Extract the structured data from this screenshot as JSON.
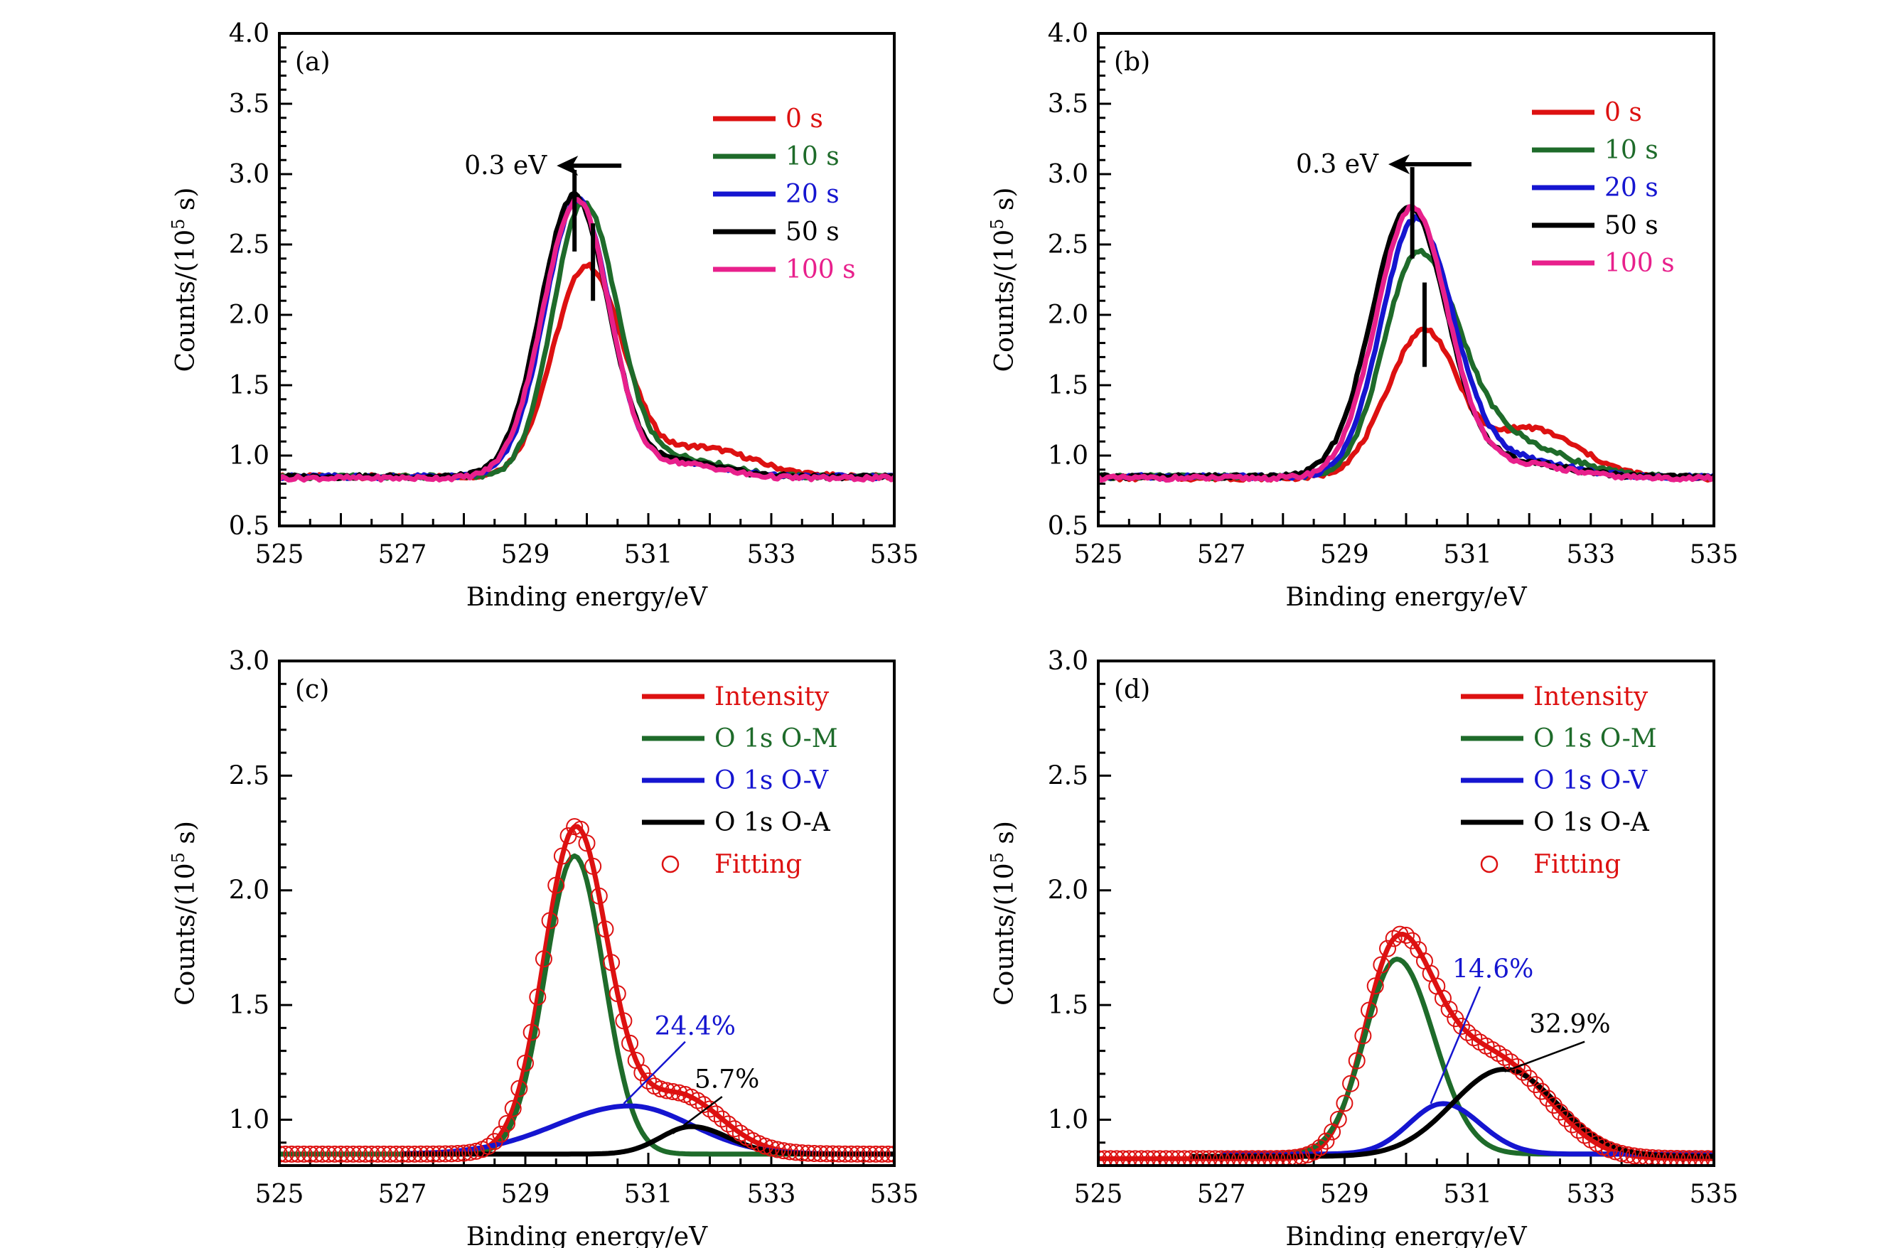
{
  "chart_data": [
    {
      "id": "a",
      "type": "line",
      "panel_label": "(a)",
      "xlabel": "Binding energy/eV",
      "ylabel": "Counts/(10^5 s)",
      "ylabel_parts": {
        "pre": "Counts/(10",
        "sup": "5",
        "post": " s)"
      },
      "xlim": [
        525,
        535
      ],
      "ylim": [
        0.5,
        4.0
      ],
      "xticks": [
        525,
        527,
        529,
        531,
        533,
        535
      ],
      "xtick_labels": [
        "525",
        "527",
        "529",
        "531",
        "533",
        "535"
      ],
      "yticks": [
        0.5,
        1.0,
        1.5,
        2.0,
        2.5,
        3.0,
        3.5,
        4.0
      ],
      "ytick_labels": [
        "0.5",
        "1.0",
        "1.5",
        "2.0",
        "2.5",
        "3.0",
        "3.5",
        "4.0"
      ],
      "legend_position": "top-right",
      "annotation": {
        "text": "0.3 eV",
        "shift_from": 530.1,
        "shift_to": 529.8,
        "arrow_y": 3.06
      },
      "peak_markers": [
        {
          "x": 529.8,
          "y_from": 2.45,
          "y_to": 3.03
        },
        {
          "x": 530.1,
          "y_from": 2.1,
          "y_to": 2.65
        }
      ],
      "series": [
        {
          "name": "0 s",
          "color": "#dd1111",
          "baseline": 0.85,
          "peaks": [
            {
              "center": 530.0,
              "height": 1.5,
              "sigmaL": 0.55,
              "sigmaR": 0.6
            },
            {
              "center": 531.9,
              "height": 0.2,
              "sigmaL": 0.6,
              "sigmaR": 0.8
            }
          ]
        },
        {
          "name": "10 s",
          "color": "#1e6b2a",
          "baseline": 0.85,
          "peaks": [
            {
              "center": 529.95,
              "height": 1.95,
              "sigmaL": 0.5,
              "sigmaR": 0.55
            },
            {
              "center": 531.6,
              "height": 0.12,
              "sigmaL": 0.5,
              "sigmaR": 0.7
            }
          ]
        },
        {
          "name": "20 s",
          "color": "#1515d0",
          "baseline": 0.85,
          "peaks": [
            {
              "center": 529.85,
              "height": 1.97,
              "sigmaL": 0.53,
              "sigmaR": 0.52
            },
            {
              "center": 531.5,
              "height": 0.1,
              "sigmaL": 0.5,
              "sigmaR": 0.7
            }
          ]
        },
        {
          "name": "50 s",
          "color": "#000000",
          "baseline": 0.85,
          "peaks": [
            {
              "center": 529.8,
              "height": 2.0,
              "sigmaL": 0.55,
              "sigmaR": 0.55
            },
            {
              "center": 531.5,
              "height": 0.1,
              "sigmaL": 0.5,
              "sigmaR": 0.7
            }
          ]
        },
        {
          "name": "100 s",
          "color": "#e8208c",
          "baseline": 0.84,
          "peaks": [
            {
              "center": 529.85,
              "height": 1.98,
              "sigmaL": 0.56,
              "sigmaR": 0.52
            },
            {
              "center": 531.5,
              "height": 0.1,
              "sigmaL": 0.5,
              "sigmaR": 0.7
            }
          ]
        }
      ]
    },
    {
      "id": "b",
      "type": "line",
      "panel_label": "(b)",
      "xlabel": "Binding energy/eV",
      "ylabel": "Counts/(10^5 s)",
      "ylabel_parts": {
        "pre": "Counts/(10",
        "sup": "5",
        "post": " s)"
      },
      "xlim": [
        525,
        535
      ],
      "ylim": [
        0.5,
        4.0
      ],
      "xticks": [
        525,
        527,
        529,
        531,
        533,
        535
      ],
      "xtick_labels": [
        "525",
        "527",
        "529",
        "531",
        "533",
        "535"
      ],
      "yticks": [
        0.5,
        1.0,
        1.5,
        2.0,
        2.5,
        3.0,
        3.5,
        4.0
      ],
      "ytick_labels": [
        "0.5",
        "1.0",
        "1.5",
        "2.0",
        "2.5",
        "3.0",
        "3.5",
        "4.0"
      ],
      "legend_position": "top-right",
      "annotation": {
        "text": "0.3 eV",
        "shift_from": 530.6,
        "shift_to": 530.0,
        "arrow_y": 3.07
      },
      "peak_markers": [
        {
          "x": 530.1,
          "y_from": 2.4,
          "y_to": 3.05
        },
        {
          "x": 530.3,
          "y_from": 1.63,
          "y_to": 2.23
        }
      ],
      "series": [
        {
          "name": "0 s",
          "color": "#dd1111",
          "baseline": 0.84,
          "peaks": [
            {
              "center": 530.3,
              "height": 1.05,
              "sigmaL": 0.6,
              "sigmaR": 0.55
            },
            {
              "center": 532.0,
              "height": 0.35,
              "sigmaL": 0.6,
              "sigmaR": 0.8
            }
          ]
        },
        {
          "name": "10 s",
          "color": "#1e6b2a",
          "baseline": 0.85,
          "peaks": [
            {
              "center": 530.2,
              "height": 1.6,
              "sigmaL": 0.55,
              "sigmaR": 0.7
            },
            {
              "center": 531.9,
              "height": 0.2,
              "sigmaL": 0.6,
              "sigmaR": 0.8
            }
          ]
        },
        {
          "name": "20 s",
          "color": "#1515d0",
          "baseline": 0.85,
          "peaks": [
            {
              "center": 530.15,
              "height": 1.83,
              "sigmaL": 0.55,
              "sigmaR": 0.62
            },
            {
              "center": 531.8,
              "height": 0.12,
              "sigmaL": 0.6,
              "sigmaR": 0.8
            }
          ]
        },
        {
          "name": "50 s",
          "color": "#000000",
          "baseline": 0.85,
          "peaks": [
            {
              "center": 530.05,
              "height": 1.93,
              "sigmaL": 0.6,
              "sigmaR": 0.6
            },
            {
              "center": 531.8,
              "height": 0.1,
              "sigmaL": 0.6,
              "sigmaR": 0.8
            }
          ]
        },
        {
          "name": "100 s",
          "color": "#e8208c",
          "baseline": 0.84,
          "peaks": [
            {
              "center": 530.1,
              "height": 1.92,
              "sigmaL": 0.58,
              "sigmaR": 0.58
            },
            {
              "center": 531.8,
              "height": 0.1,
              "sigmaL": 0.6,
              "sigmaR": 0.8
            }
          ]
        }
      ]
    },
    {
      "id": "c",
      "type": "line",
      "panel_label": "(c)",
      "xlabel": "Binding energy/eV",
      "ylabel": "Counts/(10^5 s)",
      "ylabel_parts": {
        "pre": "Counts/(10",
        "sup": "5",
        "post": " s)"
      },
      "xlim": [
        525,
        535
      ],
      "ylim": [
        0.8,
        3.0
      ],
      "xticks": [
        525,
        527,
        529,
        531,
        533,
        535
      ],
      "xtick_labels": [
        "525",
        "527",
        "529",
        "531",
        "533",
        "535"
      ],
      "yticks": [
        1.0,
        1.5,
        2.0,
        2.5,
        3.0
      ],
      "ytick_labels": [
        "1.0",
        "1.5",
        "2.0",
        "2.5",
        "3.0"
      ],
      "legend_position": "top-right",
      "percent_labels": [
        {
          "text": "24.4%",
          "color": "#1515d0",
          "x": 531.1,
          "y": 1.37,
          "line_from": [
            530.6,
            1.07
          ],
          "line_to": [
            531.6,
            1.34
          ]
        },
        {
          "text": "5.7%",
          "color": "#000000",
          "x": 531.75,
          "y": 1.14,
          "line_from": [
            531.4,
            0.94
          ],
          "line_to": [
            532.2,
            1.1
          ]
        }
      ],
      "series": [
        {
          "name": "Intensity",
          "color": "#dd1111",
          "kind": "line",
          "baseline": 0.85,
          "peaks": [
            {
              "center": 529.8,
              "height": 1.3,
              "sigmaL": 0.5,
              "sigmaR": 0.5
            },
            {
              "center": 530.7,
              "height": 0.21,
              "sigmaL": 0.9,
              "sigmaR": 1.0
            },
            {
              "center": 531.7,
              "height": 0.12,
              "sigmaL": 0.5,
              "sigmaR": 0.6
            }
          ]
        },
        {
          "name": "O 1s O-M",
          "color": "#1e6b2a",
          "kind": "line",
          "baseline": 0.85,
          "peaks": [
            {
              "center": 529.8,
              "height": 1.3,
              "sigmaL": 0.48,
              "sigmaR": 0.48
            }
          ]
        },
        {
          "name": "O 1s O-V",
          "color": "#1515d0",
          "kind": "line",
          "baseline": 0.85,
          "x_start": 527.0,
          "peaks": [
            {
              "center": 530.7,
              "height": 0.21,
              "sigmaL": 1.2,
              "sigmaR": 1.0
            }
          ]
        },
        {
          "name": "O 1s O-A",
          "color": "#000000",
          "kind": "line",
          "baseline": 0.85,
          "x_start": 527.0,
          "peaks": [
            {
              "center": 531.7,
              "height": 0.12,
              "sigmaL": 0.5,
              "sigmaR": 0.6
            }
          ]
        },
        {
          "name": "Fitting",
          "color": "#dd1111",
          "kind": "circles",
          "baseline": 0.85,
          "peaks": [
            {
              "center": 529.8,
              "height": 1.3,
              "sigmaL": 0.5,
              "sigmaR": 0.5
            },
            {
              "center": 530.7,
              "height": 0.21,
              "sigmaL": 0.9,
              "sigmaR": 1.0
            },
            {
              "center": 531.7,
              "height": 0.12,
              "sigmaL": 0.5,
              "sigmaR": 0.6
            }
          ]
        }
      ]
    },
    {
      "id": "d",
      "type": "line",
      "panel_label": "(d)",
      "xlabel": "Binding energy/eV",
      "ylabel": "Counts/(10^5 s)",
      "ylabel_parts": {
        "pre": "Counts/(10",
        "sup": "5",
        "post": " s)"
      },
      "xlim": [
        525,
        535
      ],
      "ylim": [
        0.8,
        3.0
      ],
      "xticks": [
        525,
        527,
        529,
        531,
        533,
        535
      ],
      "xtick_labels": [
        "525",
        "527",
        "529",
        "531",
        "533",
        "535"
      ],
      "yticks": [
        1.0,
        1.5,
        2.0,
        2.5,
        3.0
      ],
      "ytick_labels": [
        "1.0",
        "1.5",
        "2.0",
        "2.5",
        "3.0"
      ],
      "legend_position": "top-right",
      "percent_labels": [
        {
          "text": "14.6%",
          "color": "#1515d0",
          "x": 530.75,
          "y": 1.62,
          "line_from": [
            530.4,
            1.07
          ],
          "line_to": [
            531.2,
            1.58
          ]
        },
        {
          "text": "32.9%",
          "color": "#000000",
          "x": 532.0,
          "y": 1.38,
          "line_from": [
            531.6,
            1.21
          ],
          "line_to": [
            532.9,
            1.34
          ]
        }
      ],
      "series": [
        {
          "name": "Intensity",
          "color": "#dd1111",
          "kind": "line",
          "baseline": 0.83,
          "peaks": [
            {
              "center": 529.8,
              "height": 0.85,
              "sigmaL": 0.5,
              "sigmaR": 0.55
            },
            {
              "center": 530.6,
              "height": 0.23,
              "sigmaL": 0.55,
              "sigmaR": 0.6
            },
            {
              "center": 531.6,
              "height": 0.38,
              "sigmaL": 0.8,
              "sigmaR": 0.8
            }
          ]
        },
        {
          "name": "O 1s O-M",
          "color": "#1e6b2a",
          "kind": "line",
          "baseline": 0.85,
          "x_start": 527.0,
          "peaks": [
            {
              "center": 529.85,
              "height": 0.85,
              "sigmaL": 0.52,
              "sigmaR": 0.6
            }
          ]
        },
        {
          "name": "O 1s O-V",
          "color": "#1515d0",
          "kind": "line",
          "baseline": 0.85,
          "x_start": 527.0,
          "peaks": [
            {
              "center": 530.6,
              "height": 0.22,
              "sigmaL": 0.55,
              "sigmaR": 0.6
            }
          ]
        },
        {
          "name": "O 1s O-A",
          "color": "#000000",
          "kind": "line",
          "baseline": 0.84,
          "x_start": 526.5,
          "peaks": [
            {
              "center": 531.6,
              "height": 0.38,
              "sigmaL": 0.85,
              "sigmaR": 0.85
            }
          ]
        },
        {
          "name": "Fitting",
          "color": "#dd1111",
          "kind": "circles",
          "baseline": 0.83,
          "peaks": [
            {
              "center": 529.8,
              "height": 0.85,
              "sigmaL": 0.5,
              "sigmaR": 0.55
            },
            {
              "center": 530.6,
              "height": 0.23,
              "sigmaL": 0.55,
              "sigmaR": 0.6
            },
            {
              "center": 531.6,
              "height": 0.38,
              "sigmaL": 0.8,
              "sigmaR": 0.8
            }
          ]
        }
      ]
    }
  ]
}
